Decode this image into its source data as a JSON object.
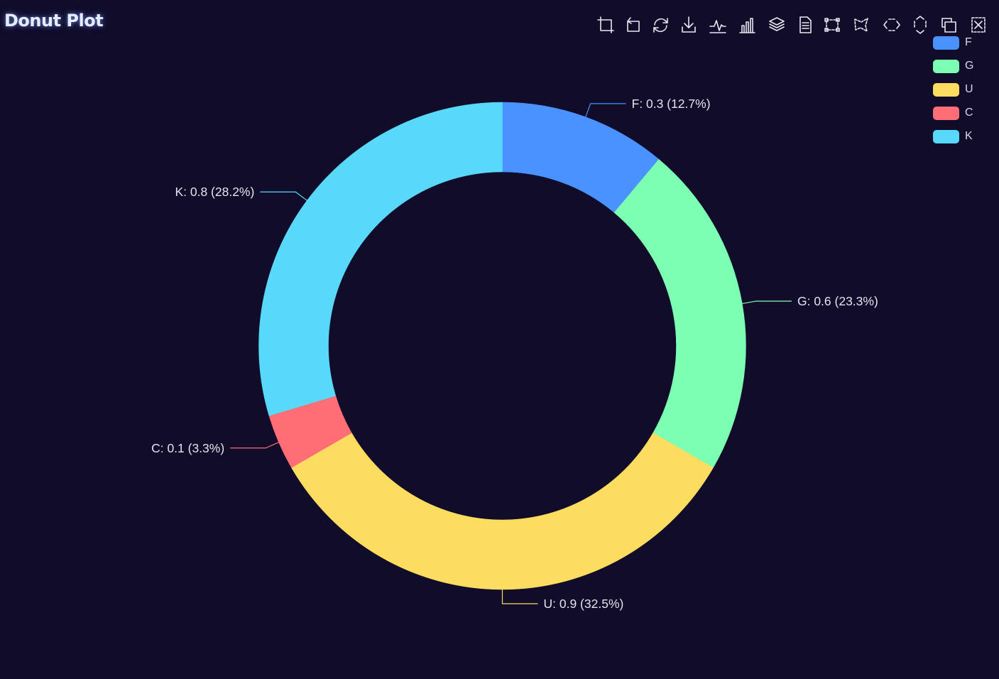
{
  "title": "Donut Plot",
  "toolbox": [
    {
      "name": "zoom-select-icon"
    },
    {
      "name": "zoom-reset-icon"
    },
    {
      "name": "restore-icon"
    },
    {
      "name": "save-image-icon"
    },
    {
      "name": "line-chart-icon"
    },
    {
      "name": "bar-chart-icon"
    },
    {
      "name": "stack-icon"
    },
    {
      "name": "data-view-icon"
    },
    {
      "name": "brush-rect-icon"
    },
    {
      "name": "brush-polygon-icon"
    },
    {
      "name": "brush-line-x-icon"
    },
    {
      "name": "brush-line-y-icon"
    },
    {
      "name": "brush-keep-icon"
    },
    {
      "name": "brush-clear-icon"
    }
  ],
  "chart_data": {
    "type": "pie",
    "variant": "donut",
    "title": "Donut Plot",
    "legend_position": "top-right",
    "slices": [
      {
        "label": "F",
        "value": 0.3,
        "percent": "12.7%",
        "color": "#4992ff",
        "display": "F: 0.3 (12.7%)"
      },
      {
        "label": "G",
        "value": 0.6,
        "percent": "23.3%",
        "color": "#7cffb2",
        "display": "G: 0.6 (23.3%)"
      },
      {
        "label": "U",
        "value": 0.9,
        "percent": "32.5%",
        "color": "#fddd60",
        "display": "U: 0.9 (32.5%)"
      },
      {
        "label": "C",
        "value": 0.1,
        "percent": "3.3%",
        "color": "#ff6e76",
        "display": "C: 0.1 (3.3%)"
      },
      {
        "label": "K",
        "value": 0.8,
        "percent": "28.2%",
        "color": "#58d9f9",
        "display": "K: 0.8 (28.2%)"
      }
    ]
  }
}
